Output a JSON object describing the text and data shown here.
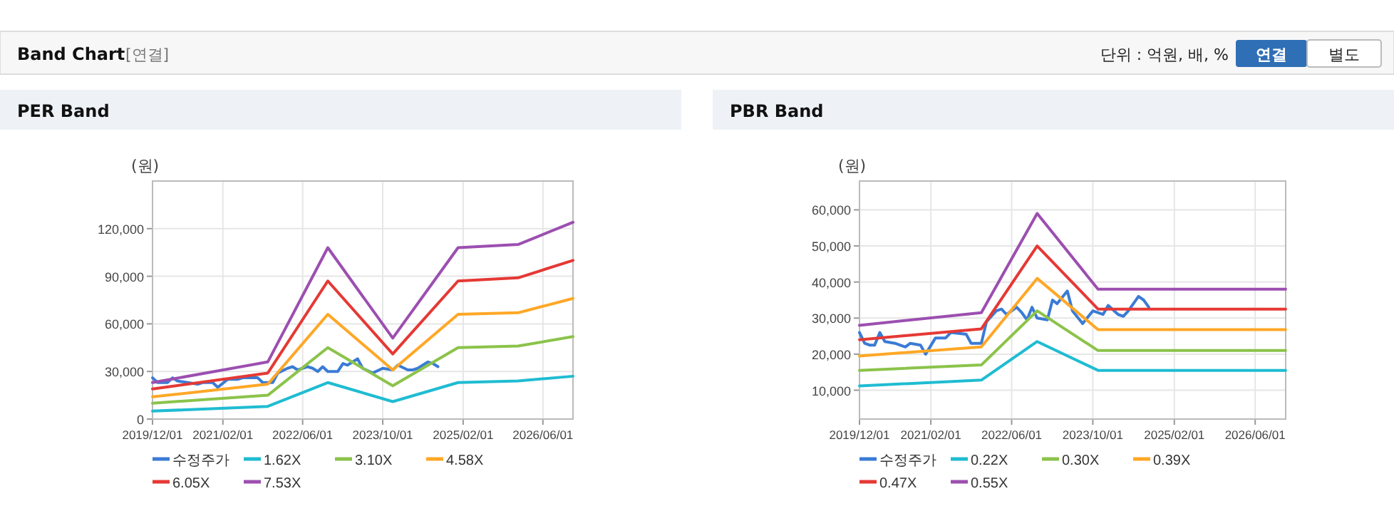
{
  "chart_data": [
    {
      "type": "other",
      "title": "Band Chart",
      "annotations": [
        "[연결]",
        "단위 : 억원, 배, %",
        "연결",
        "별도"
      ]
    },
    {
      "type": "line",
      "title": "PER Band",
      "ylabel": "(원)",
      "grid": true,
      "legend": "bottom",
      "xlim": [
        "2019-12-01",
        "2026-12-01"
      ],
      "ylim": [
        0,
        150000
      ],
      "xticks": [
        {
          "value": "2019-12-01",
          "label": "2019/12/01"
        },
        {
          "value": "2021-02-01",
          "label": "2021/02/01"
        },
        {
          "value": "2022-06-01",
          "label": "2022/06/01"
        },
        {
          "value": "2023-10-01",
          "label": "2023/10/01"
        },
        {
          "value": "2025-02-01",
          "label": "2025/02/01"
        },
        {
          "value": "2026-06-01",
          "label": "2026/06/01"
        }
      ],
      "yticks": [
        0,
        {
          "value": 30000,
          "label": "30,000"
        },
        {
          "value": 60000,
          "label": "60,000"
        },
        {
          "value": 90000,
          "label": "90,000"
        },
        {
          "value": 120000,
          "label": "120,000"
        }
      ],
      "series": [
        {
          "name": "수정주가",
          "color": "#3a7bd5",
          "x": [
            "2019-12",
            "2020-01",
            "2020-02",
            "2020-03",
            "2020-04",
            "2020-05",
            "2020-07",
            "2020-09",
            "2020-10",
            "2020-12",
            "2021-01",
            "2021-03",
            "2021-05",
            "2021-06",
            "2021-09",
            "2021-10",
            "2021-12",
            "2022-01",
            "2022-03",
            "2022-04",
            "2022-05",
            "2022-07",
            "2022-08",
            "2022-09",
            "2022-10",
            "2022-11",
            "2023-01",
            "2023-02",
            "2023-03",
            "2023-05",
            "2023-06",
            "2023-08",
            "2023-10",
            "2023-12",
            "2024-01",
            "2024-03",
            "2024-04",
            "2024-05",
            "2024-07",
            "2024-08",
            "2024-09"
          ],
          "values": [
            26000,
            23000,
            23000,
            23000,
            26000,
            24000,
            23000,
            22000,
            23000,
            23000,
            20000,
            25000,
            25000,
            26000,
            26000,
            23000,
            23000,
            29000,
            32000,
            33000,
            31000,
            33000,
            32000,
            30000,
            33000,
            30000,
            30000,
            35000,
            34000,
            38000,
            32000,
            29000,
            32000,
            31000,
            34000,
            31000,
            31000,
            32000,
            36000,
            35000,
            33000
          ]
        },
        {
          "name": "1.62X",
          "color": "#1fbcd2",
          "x": [
            "2019-12",
            "2021-11",
            "2022-11",
            "2023-12",
            "2025-01",
            "2026-01",
            "2026-12"
          ],
          "values": [
            5000,
            8000,
            23000,
            11000,
            23000,
            24000,
            27000
          ]
        },
        {
          "name": "3.10X",
          "color": "#8bc34a",
          "x": [
            "2019-12",
            "2021-11",
            "2022-11",
            "2023-12",
            "2025-01",
            "2026-01",
            "2026-12"
          ],
          "values": [
            10000,
            15000,
            45000,
            21000,
            45000,
            46000,
            52000
          ]
        },
        {
          "name": "4.58X",
          "color": "#ffa726",
          "x": [
            "2019-12",
            "2021-11",
            "2022-11",
            "2023-12",
            "2025-01",
            "2026-01",
            "2026-12"
          ],
          "values": [
            14000,
            22000,
            66000,
            31000,
            66000,
            67000,
            76000
          ]
        },
        {
          "name": "6.05X",
          "color": "#e53935",
          "x": [
            "2019-12",
            "2021-11",
            "2022-11",
            "2023-12",
            "2025-01",
            "2026-01",
            "2026-12"
          ],
          "values": [
            19000,
            29000,
            87000,
            41000,
            87000,
            89000,
            100000
          ]
        },
        {
          "name": "7.53X",
          "color": "#9c4fb0",
          "x": [
            "2019-12",
            "2021-11",
            "2022-11",
            "2023-12",
            "2025-01",
            "2026-01",
            "2026-12"
          ],
          "values": [
            23000,
            36000,
            108000,
            51000,
            108000,
            110000,
            124000
          ]
        }
      ]
    },
    {
      "type": "line",
      "title": "PBR Band",
      "ylabel": "(원)",
      "grid": true,
      "legend": "bottom",
      "xlim": [
        "2019-12-01",
        "2026-12-01"
      ],
      "ylim": [
        2000,
        68000
      ],
      "xticks": [
        {
          "value": "2019-12-01",
          "label": "2019/12/01"
        },
        {
          "value": "2021-02-01",
          "label": "2021/02/01"
        },
        {
          "value": "2022-06-01",
          "label": "2022/06/01"
        },
        {
          "value": "2023-10-01",
          "label": "2023/10/01"
        },
        {
          "value": "2025-02-01",
          "label": "2025/02/01"
        },
        {
          "value": "2026-06-01",
          "label": "2026/06/01"
        }
      ],
      "yticks": [
        {
          "value": 10000,
          "label": "10,000"
        },
        {
          "value": 20000,
          "label": "20,000"
        },
        {
          "value": 30000,
          "label": "30,000"
        },
        {
          "value": 40000,
          "label": "40,000"
        },
        {
          "value": 50000,
          "label": "50,000"
        },
        {
          "value": 60000,
          "label": "60,000"
        }
      ],
      "series": [
        {
          "name": "수정주가",
          "color": "#3a7bd5",
          "x": [
            "2019-12",
            "2020-01",
            "2020-02",
            "2020-03",
            "2020-04",
            "2020-05",
            "2020-07",
            "2020-09",
            "2020-10",
            "2020-12",
            "2021-01",
            "2021-03",
            "2021-05",
            "2021-06",
            "2021-09",
            "2021-10",
            "2021-12",
            "2022-01",
            "2022-03",
            "2022-04",
            "2022-05",
            "2022-07",
            "2022-08",
            "2022-09",
            "2022-10",
            "2022-11",
            "2023-01",
            "2023-02",
            "2023-03",
            "2023-05",
            "2023-06",
            "2023-08",
            "2023-10",
            "2023-12",
            "2024-01",
            "2024-03",
            "2024-04",
            "2024-05",
            "2024-07",
            "2024-08",
            "2024-09"
          ],
          "values": [
            26000,
            23000,
            22500,
            22500,
            26000,
            23500,
            23000,
            22000,
            23000,
            22500,
            20000,
            24500,
            24500,
            26000,
            25500,
            23000,
            23000,
            29000,
            32000,
            32500,
            31000,
            33000,
            31500,
            29500,
            33000,
            30000,
            29500,
            35000,
            34000,
            37500,
            32000,
            28500,
            32000,
            31000,
            33500,
            31000,
            30500,
            32000,
            36000,
            35000,
            33000
          ]
        },
        {
          "name": "0.22X",
          "color": "#1fbcd2",
          "x": [
            "2019-12",
            "2021-12",
            "2022-11",
            "2023-11",
            "2026-12"
          ],
          "values": [
            11200,
            12800,
            23500,
            15500,
            15500
          ]
        },
        {
          "name": "0.30X",
          "color": "#8bc34a",
          "x": [
            "2019-12",
            "2021-12",
            "2022-11",
            "2023-11",
            "2026-12"
          ],
          "values": [
            15500,
            17000,
            32000,
            21000,
            21000
          ]
        },
        {
          "name": "0.39X",
          "color": "#ffa726",
          "x": [
            "2019-12",
            "2021-12",
            "2022-11",
            "2023-11",
            "2026-12"
          ],
          "values": [
            19500,
            22000,
            41000,
            26800,
            26800
          ]
        },
        {
          "name": "0.47X",
          "color": "#e53935",
          "x": [
            "2019-12",
            "2021-12",
            "2022-11",
            "2023-11",
            "2026-12"
          ],
          "values": [
            24000,
            27000,
            50000,
            32500,
            32500
          ]
        },
        {
          "name": "0.55X",
          "color": "#9c4fb0",
          "x": [
            "2019-12",
            "2021-12",
            "2022-11",
            "2023-11",
            "2026-12"
          ],
          "values": [
            28000,
            31500,
            59000,
            38000,
            38000
          ]
        }
      ]
    }
  ]
}
